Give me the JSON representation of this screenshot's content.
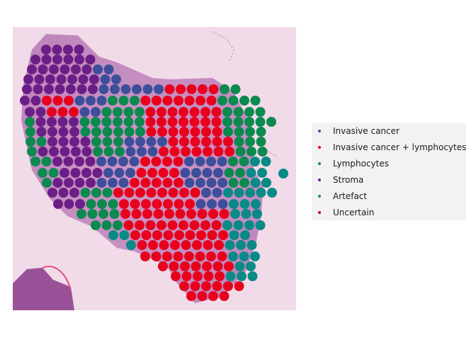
{
  "chart_data": {
    "type": "scatter",
    "title": "",
    "xlabel": "",
    "ylabel": "",
    "background": "H&E tissue section image",
    "grid": false,
    "legend_position": "right",
    "categories": [
      {
        "name": "Invasive cancer",
        "color": "#3d4f9a"
      },
      {
        "name": "Invasive cancer + lymphocytes",
        "color": "#e8001c"
      },
      {
        "name": "Lymphocytes",
        "color": "#0b8a4f"
      },
      {
        "name": "Stroma",
        "color": "#6b1f86"
      },
      {
        "name": "Artefact",
        "color": "#0a8a86"
      },
      {
        "name": "Uncertain",
        "color": "#c4001a"
      }
    ],
    "regions": [
      {
        "category": "Stroma",
        "spots_description": "left and upper-left of tissue"
      },
      {
        "category": "Invasive cancer",
        "spots_description": "central band"
      },
      {
        "category": "Invasive cancer + lymphocytes",
        "spots_description": "center-right and lower tissue"
      },
      {
        "category": "Lymphocytes",
        "spots_description": "scattered left and right margins"
      },
      {
        "category": "Artefact",
        "spots_description": "right and lower-right edge"
      }
    ]
  }
}
